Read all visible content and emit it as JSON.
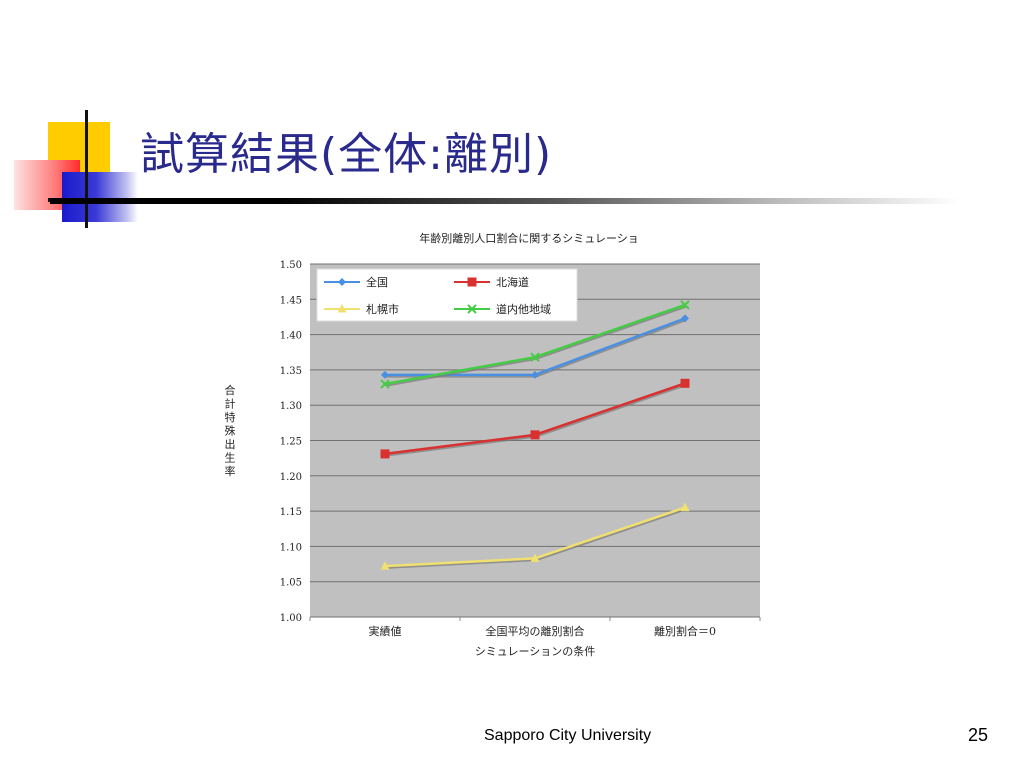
{
  "slide": {
    "title": "試算結果(全体:離別)",
    "footer": "Sapporo City University",
    "page_number": "25"
  },
  "chart_data": {
    "type": "line",
    "title": "年齢別離別人口割合に関するシミュレーショ",
    "xlabel": "シミュレーションの条件",
    "ylabel": "合計特殊出生率",
    "categories": [
      "実績値",
      "全国平均の離別割合",
      "離別割合＝0"
    ],
    "ylim": [
      1.0,
      1.5
    ],
    "yticks": [
      "1.00",
      "1.05",
      "1.10",
      "1.15",
      "1.20",
      "1.25",
      "1.30",
      "1.35",
      "1.40",
      "1.45",
      "1.50"
    ],
    "grid": true,
    "legend_position": "top-left inside",
    "series": [
      {
        "name": "全国",
        "values": [
          1.343,
          1.343,
          1.423
        ],
        "color": "#4a90e2",
        "marker": "diamond"
      },
      {
        "name": "北海道",
        "values": [
          1.231,
          1.258,
          1.331
        ],
        "color": "#d93030",
        "marker": "square"
      },
      {
        "name": "札幌市",
        "values": [
          1.072,
          1.083,
          1.155
        ],
        "color": "#f0e070",
        "marker": "triangle"
      },
      {
        "name": "道内他地域",
        "values": [
          1.33,
          1.368,
          1.442
        ],
        "color": "#44cc44",
        "marker": "x"
      }
    ]
  }
}
